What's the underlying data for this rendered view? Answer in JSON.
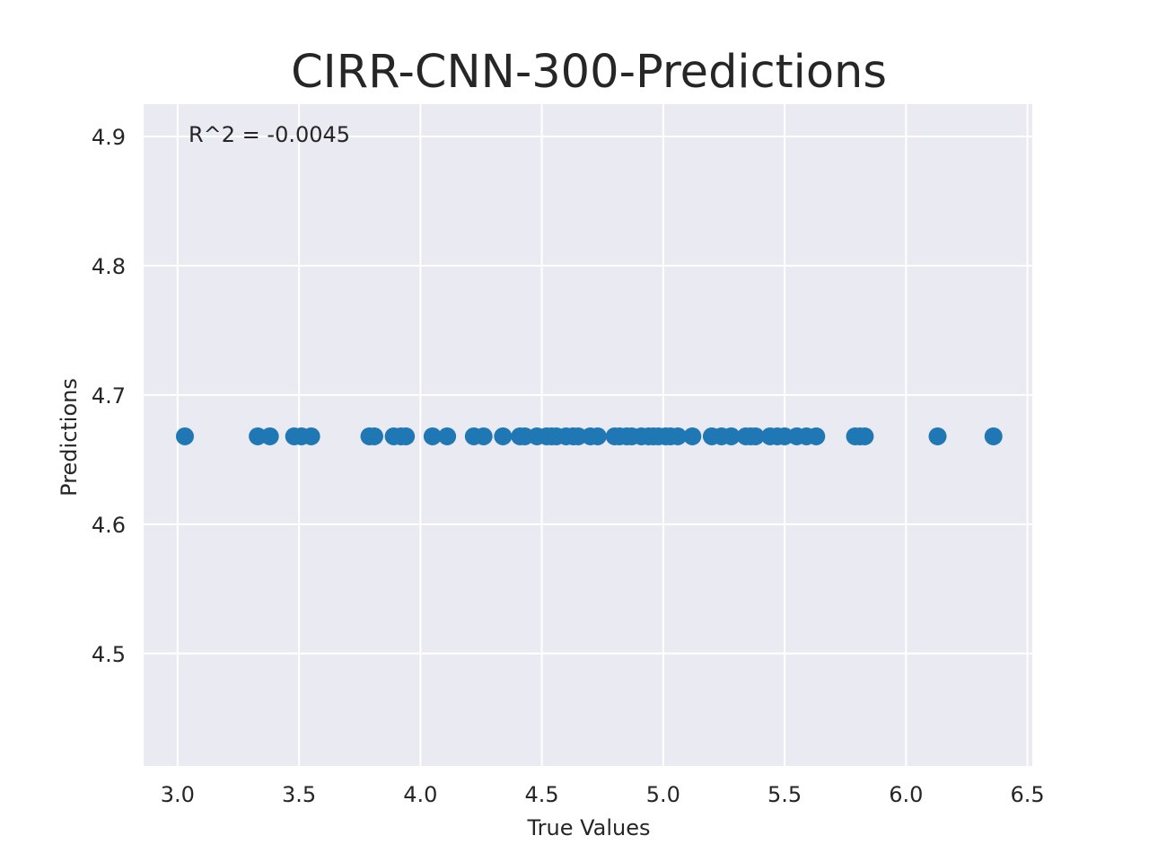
{
  "chart_data": {
    "type": "scatter",
    "title": "CIRR-CNN-300-Predictions",
    "xlabel": "True Values",
    "ylabel": "Predictions",
    "xlim": [
      2.86,
      6.52
    ],
    "ylim": [
      4.413,
      4.925
    ],
    "xticks": [
      3.0,
      3.5,
      4.0,
      4.5,
      5.0,
      5.5,
      6.0,
      6.5
    ],
    "xtick_labels": [
      "3.0",
      "3.5",
      "4.0",
      "4.5",
      "5.0",
      "5.5",
      "6.0",
      "6.5"
    ],
    "yticks": [
      4.5,
      4.6,
      4.7,
      4.8,
      4.9
    ],
    "ytick_labels": [
      "4.5",
      "4.6",
      "4.7",
      "4.8",
      "4.9"
    ],
    "grid": true,
    "background": "#eaeaf2",
    "point_color": "#1f77b4",
    "annotation": "R^2 = -0.0045",
    "points": [
      {
        "x": 3.03,
        "y": 4.668
      },
      {
        "x": 3.33,
        "y": 4.668
      },
      {
        "x": 3.38,
        "y": 4.668
      },
      {
        "x": 3.48,
        "y": 4.668
      },
      {
        "x": 3.51,
        "y": 4.668
      },
      {
        "x": 3.55,
        "y": 4.668
      },
      {
        "x": 3.79,
        "y": 4.668
      },
      {
        "x": 3.81,
        "y": 4.668
      },
      {
        "x": 3.89,
        "y": 4.668
      },
      {
        "x": 3.92,
        "y": 4.668
      },
      {
        "x": 3.94,
        "y": 4.668
      },
      {
        "x": 4.05,
        "y": 4.668
      },
      {
        "x": 4.11,
        "y": 4.668
      },
      {
        "x": 4.22,
        "y": 4.668
      },
      {
        "x": 4.26,
        "y": 4.668
      },
      {
        "x": 4.34,
        "y": 4.668
      },
      {
        "x": 4.41,
        "y": 4.668
      },
      {
        "x": 4.43,
        "y": 4.668
      },
      {
        "x": 4.48,
        "y": 4.668
      },
      {
        "x": 4.52,
        "y": 4.668
      },
      {
        "x": 4.54,
        "y": 4.668
      },
      {
        "x": 4.56,
        "y": 4.668
      },
      {
        "x": 4.6,
        "y": 4.668
      },
      {
        "x": 4.63,
        "y": 4.668
      },
      {
        "x": 4.65,
        "y": 4.668
      },
      {
        "x": 4.7,
        "y": 4.668
      },
      {
        "x": 4.73,
        "y": 4.668
      },
      {
        "x": 4.8,
        "y": 4.668
      },
      {
        "x": 4.82,
        "y": 4.668
      },
      {
        "x": 4.85,
        "y": 4.668
      },
      {
        "x": 4.87,
        "y": 4.668
      },
      {
        "x": 4.91,
        "y": 4.668
      },
      {
        "x": 4.94,
        "y": 4.668
      },
      {
        "x": 4.96,
        "y": 4.668
      },
      {
        "x": 4.98,
        "y": 4.668
      },
      {
        "x": 5.01,
        "y": 4.668
      },
      {
        "x": 5.03,
        "y": 4.668
      },
      {
        "x": 5.06,
        "y": 4.668
      },
      {
        "x": 5.12,
        "y": 4.668
      },
      {
        "x": 5.2,
        "y": 4.668
      },
      {
        "x": 5.24,
        "y": 4.668
      },
      {
        "x": 5.28,
        "y": 4.668
      },
      {
        "x": 5.34,
        "y": 4.668
      },
      {
        "x": 5.36,
        "y": 4.668
      },
      {
        "x": 5.38,
        "y": 4.668
      },
      {
        "x": 5.44,
        "y": 4.668
      },
      {
        "x": 5.47,
        "y": 4.668
      },
      {
        "x": 5.5,
        "y": 4.668
      },
      {
        "x": 5.55,
        "y": 4.668
      },
      {
        "x": 5.59,
        "y": 4.668
      },
      {
        "x": 5.63,
        "y": 4.668
      },
      {
        "x": 5.79,
        "y": 4.668
      },
      {
        "x": 5.81,
        "y": 4.668
      },
      {
        "x": 5.83,
        "y": 4.668
      },
      {
        "x": 6.13,
        "y": 4.668
      },
      {
        "x": 6.36,
        "y": 4.668
      }
    ]
  }
}
